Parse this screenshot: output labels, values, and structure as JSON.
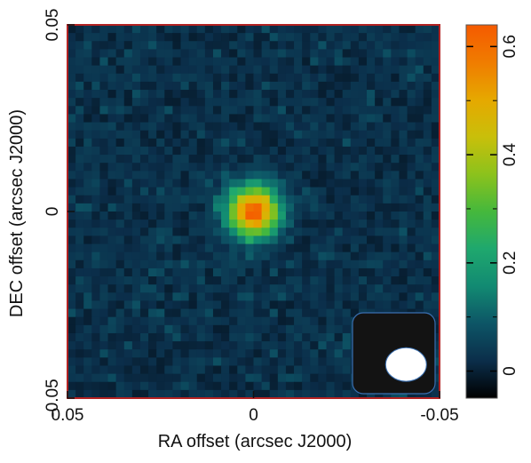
{
  "chart_data": {
    "type": "heatmap",
    "xlabel": "RA offset (arcsec J2000)",
    "ylabel": "DEC offset (arcsec J2000)",
    "xlim": [
      0.05,
      -0.05
    ],
    "ylim": [
      -0.05,
      0.05
    ],
    "x_ticks": [
      {
        "value": 0.05,
        "label": "0.05"
      },
      {
        "value": 0,
        "label": "0"
      },
      {
        "value": -0.05,
        "label": "-0.05"
      }
    ],
    "y_ticks": [
      {
        "value": 0.05,
        "label": "0.05"
      },
      {
        "value": 0,
        "label": "0"
      },
      {
        "value": -0.05,
        "label": "-0.05"
      }
    ],
    "colorbar": {
      "range": [
        -0.05,
        0.64
      ],
      "ticks": [
        {
          "value": 0.6,
          "label": "0.6"
        },
        {
          "value": 0.4,
          "label": "0.4"
        },
        {
          "value": 0.2,
          "label": "0.2"
        },
        {
          "value": 0,
          "label": "0"
        }
      ],
      "colors": [
        "#000000",
        "#0b2e4a",
        "#0d5566",
        "#128a72",
        "#1fa86e",
        "#45b83c",
        "#8cc21c",
        "#c9bf0a",
        "#e6a800",
        "#f07c00",
        "#f55a00"
      ],
      "background_value": 0.02
    },
    "source_peak": {
      "ra": 0,
      "dec": 0,
      "peak_value": 0.62,
      "fwhm_arcsec": 0.011
    },
    "beam": {
      "ra": -0.041,
      "dec": -0.041,
      "major_arcsec": 0.011,
      "minor_arcsec": 0.009
    },
    "frame_color": "#b22222",
    "beam_box_fill": "#131313",
    "beam_box_border": "#3a6fb0",
    "beam_fill": "#ffffff"
  }
}
